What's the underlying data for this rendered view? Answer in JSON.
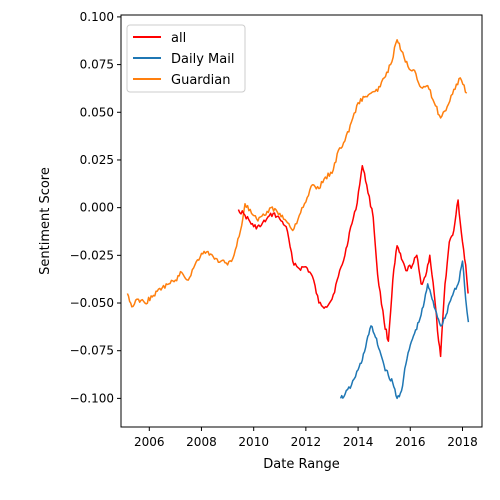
{
  "chart_data": {
    "type": "line",
    "title": "",
    "xlabel": "Date Range",
    "ylabel": "Sentiment Score",
    "xlim": [
      "2004-12-01",
      "2018-10-01"
    ],
    "ylim": [
      -0.115,
      0.101
    ],
    "x_ticks": [
      "2006",
      "2008",
      "2010",
      "2012",
      "2014",
      "2016",
      "2018"
    ],
    "y_ticks": [
      "0.100",
      "0.075",
      "0.050",
      "0.025",
      "0.000",
      "−0.025",
      "−0.050",
      "−0.075",
      "−0.100"
    ],
    "grid": false,
    "legend": "top-left",
    "series": [
      {
        "name": "all",
        "color": "#ff0000",
        "points": [
          [
            "2009-06-01",
            -0.001
          ],
          [
            "2009-09-01",
            -0.004
          ],
          [
            "2010-01-01",
            -0.01
          ],
          [
            "2010-04-01",
            -0.01
          ],
          [
            "2010-07-01",
            -0.006
          ],
          [
            "2010-10-01",
            -0.003
          ],
          [
            "2011-01-01",
            -0.006
          ],
          [
            "2011-04-01",
            -0.01
          ],
          [
            "2011-07-01",
            -0.028
          ],
          [
            "2011-10-01",
            -0.032
          ],
          [
            "2012-01-01",
            -0.031
          ],
          [
            "2012-04-01",
            -0.036
          ],
          [
            "2012-07-01",
            -0.05
          ],
          [
            "2012-10-01",
            -0.052
          ],
          [
            "2013-01-01",
            -0.048
          ],
          [
            "2013-04-01",
            -0.036
          ],
          [
            "2013-07-01",
            -0.025
          ],
          [
            "2013-09-01",
            -0.013
          ],
          [
            "2013-12-01",
            -0.001
          ],
          [
            "2014-03-01",
            0.022
          ],
          [
            "2014-05-01",
            0.012
          ],
          [
            "2014-08-01",
            -0.005
          ],
          [
            "2014-10-01",
            -0.035
          ],
          [
            "2015-01-01",
            -0.06
          ],
          [
            "2015-03-01",
            -0.07
          ],
          [
            "2015-05-01",
            -0.038
          ],
          [
            "2015-07-01",
            -0.02
          ],
          [
            "2015-09-01",
            -0.027
          ],
          [
            "2015-11-01",
            -0.033
          ],
          [
            "2016-02-01",
            -0.03
          ],
          [
            "2016-04-01",
            -0.025
          ],
          [
            "2016-06-01",
            -0.04
          ],
          [
            "2016-08-01",
            -0.036
          ],
          [
            "2016-10-01",
            -0.025
          ],
          [
            "2016-12-01",
            -0.045
          ],
          [
            "2017-02-01",
            -0.07
          ],
          [
            "2017-03-01",
            -0.078
          ],
          [
            "2017-05-01",
            -0.04
          ],
          [
            "2017-07-01",
            -0.018
          ],
          [
            "2017-09-01",
            -0.012
          ],
          [
            "2017-11-01",
            0.004
          ],
          [
            "2017-12-01",
            -0.008
          ],
          [
            "2018-01-01",
            -0.018
          ],
          [
            "2018-02-15",
            -0.03
          ],
          [
            "2018-03-20",
            -0.045
          ]
        ]
      },
      {
        "name": "Daily Mail",
        "color": "#1f77b4",
        "points": [
          [
            "2013-05-01",
            -0.1
          ],
          [
            "2013-07-01",
            -0.098
          ],
          [
            "2013-10-01",
            -0.093
          ],
          [
            "2014-01-01",
            -0.085
          ],
          [
            "2014-03-01",
            -0.08
          ],
          [
            "2014-05-01",
            -0.07
          ],
          [
            "2014-07-01",
            -0.062
          ],
          [
            "2014-09-01",
            -0.068
          ],
          [
            "2014-11-01",
            -0.075
          ],
          [
            "2015-01-01",
            -0.083
          ],
          [
            "2015-03-01",
            -0.088
          ],
          [
            "2015-05-01",
            -0.092
          ],
          [
            "2015-07-01",
            -0.1
          ],
          [
            "2015-09-01",
            -0.096
          ],
          [
            "2015-11-01",
            -0.082
          ],
          [
            "2016-01-01",
            -0.072
          ],
          [
            "2016-03-01",
            -0.066
          ],
          [
            "2016-05-01",
            -0.06
          ],
          [
            "2016-07-01",
            -0.052
          ],
          [
            "2016-09-01",
            -0.04
          ],
          [
            "2016-11-01",
            -0.048
          ],
          [
            "2017-01-01",
            -0.055
          ],
          [
            "2017-03-01",
            -0.062
          ],
          [
            "2017-05-01",
            -0.058
          ],
          [
            "2017-07-01",
            -0.05
          ],
          [
            "2017-09-01",
            -0.044
          ],
          [
            "2017-11-01",
            -0.04
          ],
          [
            "2018-01-01",
            -0.028
          ],
          [
            "2018-02-15",
            -0.048
          ],
          [
            "2018-03-25",
            -0.06
          ]
        ]
      },
      {
        "name": "Guardian",
        "color": "#ff7f0e",
        "points": [
          [
            "2005-03-01",
            -0.045
          ],
          [
            "2005-05-01",
            -0.052
          ],
          [
            "2005-08-01",
            -0.048
          ],
          [
            "2005-11-01",
            -0.05
          ],
          [
            "2006-03-01",
            -0.046
          ],
          [
            "2006-07-01",
            -0.042
          ],
          [
            "2006-10-01",
            -0.04
          ],
          [
            "2007-01-01",
            -0.038
          ],
          [
            "2007-04-01",
            -0.034
          ],
          [
            "2007-07-01",
            -0.038
          ],
          [
            "2007-10-01",
            -0.03
          ],
          [
            "2008-01-01",
            -0.024
          ],
          [
            "2008-04-01",
            -0.023
          ],
          [
            "2008-07-01",
            -0.027
          ],
          [
            "2008-10-01",
            -0.028
          ],
          [
            "2009-01-01",
            -0.03
          ],
          [
            "2009-04-01",
            -0.025
          ],
          [
            "2009-07-01",
            -0.012
          ],
          [
            "2009-09-01",
            0.002
          ],
          [
            "2009-12-01",
            -0.003
          ],
          [
            "2010-03-01",
            -0.007
          ],
          [
            "2010-06-01",
            -0.004
          ],
          [
            "2010-09-01",
            0.0
          ],
          [
            "2011-01-01",
            -0.003
          ],
          [
            "2011-04-01",
            -0.007
          ],
          [
            "2011-07-01",
            -0.012
          ],
          [
            "2011-10-01",
            -0.004
          ],
          [
            "2012-01-01",
            0.003
          ],
          [
            "2012-04-01",
            0.012
          ],
          [
            "2012-07-01",
            0.01
          ],
          [
            "2012-10-01",
            0.016
          ],
          [
            "2013-01-01",
            0.018
          ],
          [
            "2013-04-01",
            0.03
          ],
          [
            "2013-07-01",
            0.035
          ],
          [
            "2013-10-01",
            0.045
          ],
          [
            "2014-01-01",
            0.055
          ],
          [
            "2014-04-01",
            0.058
          ],
          [
            "2014-07-01",
            0.06
          ],
          [
            "2014-10-01",
            0.061
          ],
          [
            "2015-01-01",
            0.068
          ],
          [
            "2015-04-01",
            0.075
          ],
          [
            "2015-07-01",
            0.088
          ],
          [
            "2015-09-01",
            0.082
          ],
          [
            "2015-12-01",
            0.074
          ],
          [
            "2016-03-01",
            0.072
          ],
          [
            "2016-06-01",
            0.063
          ],
          [
            "2016-09-01",
            0.064
          ],
          [
            "2016-12-01",
            0.055
          ],
          [
            "2017-03-01",
            0.047
          ],
          [
            "2017-06-01",
            0.053
          ],
          [
            "2017-09-01",
            0.062
          ],
          [
            "2017-12-01",
            0.068
          ],
          [
            "2018-03-01",
            0.06
          ]
        ]
      }
    ]
  }
}
